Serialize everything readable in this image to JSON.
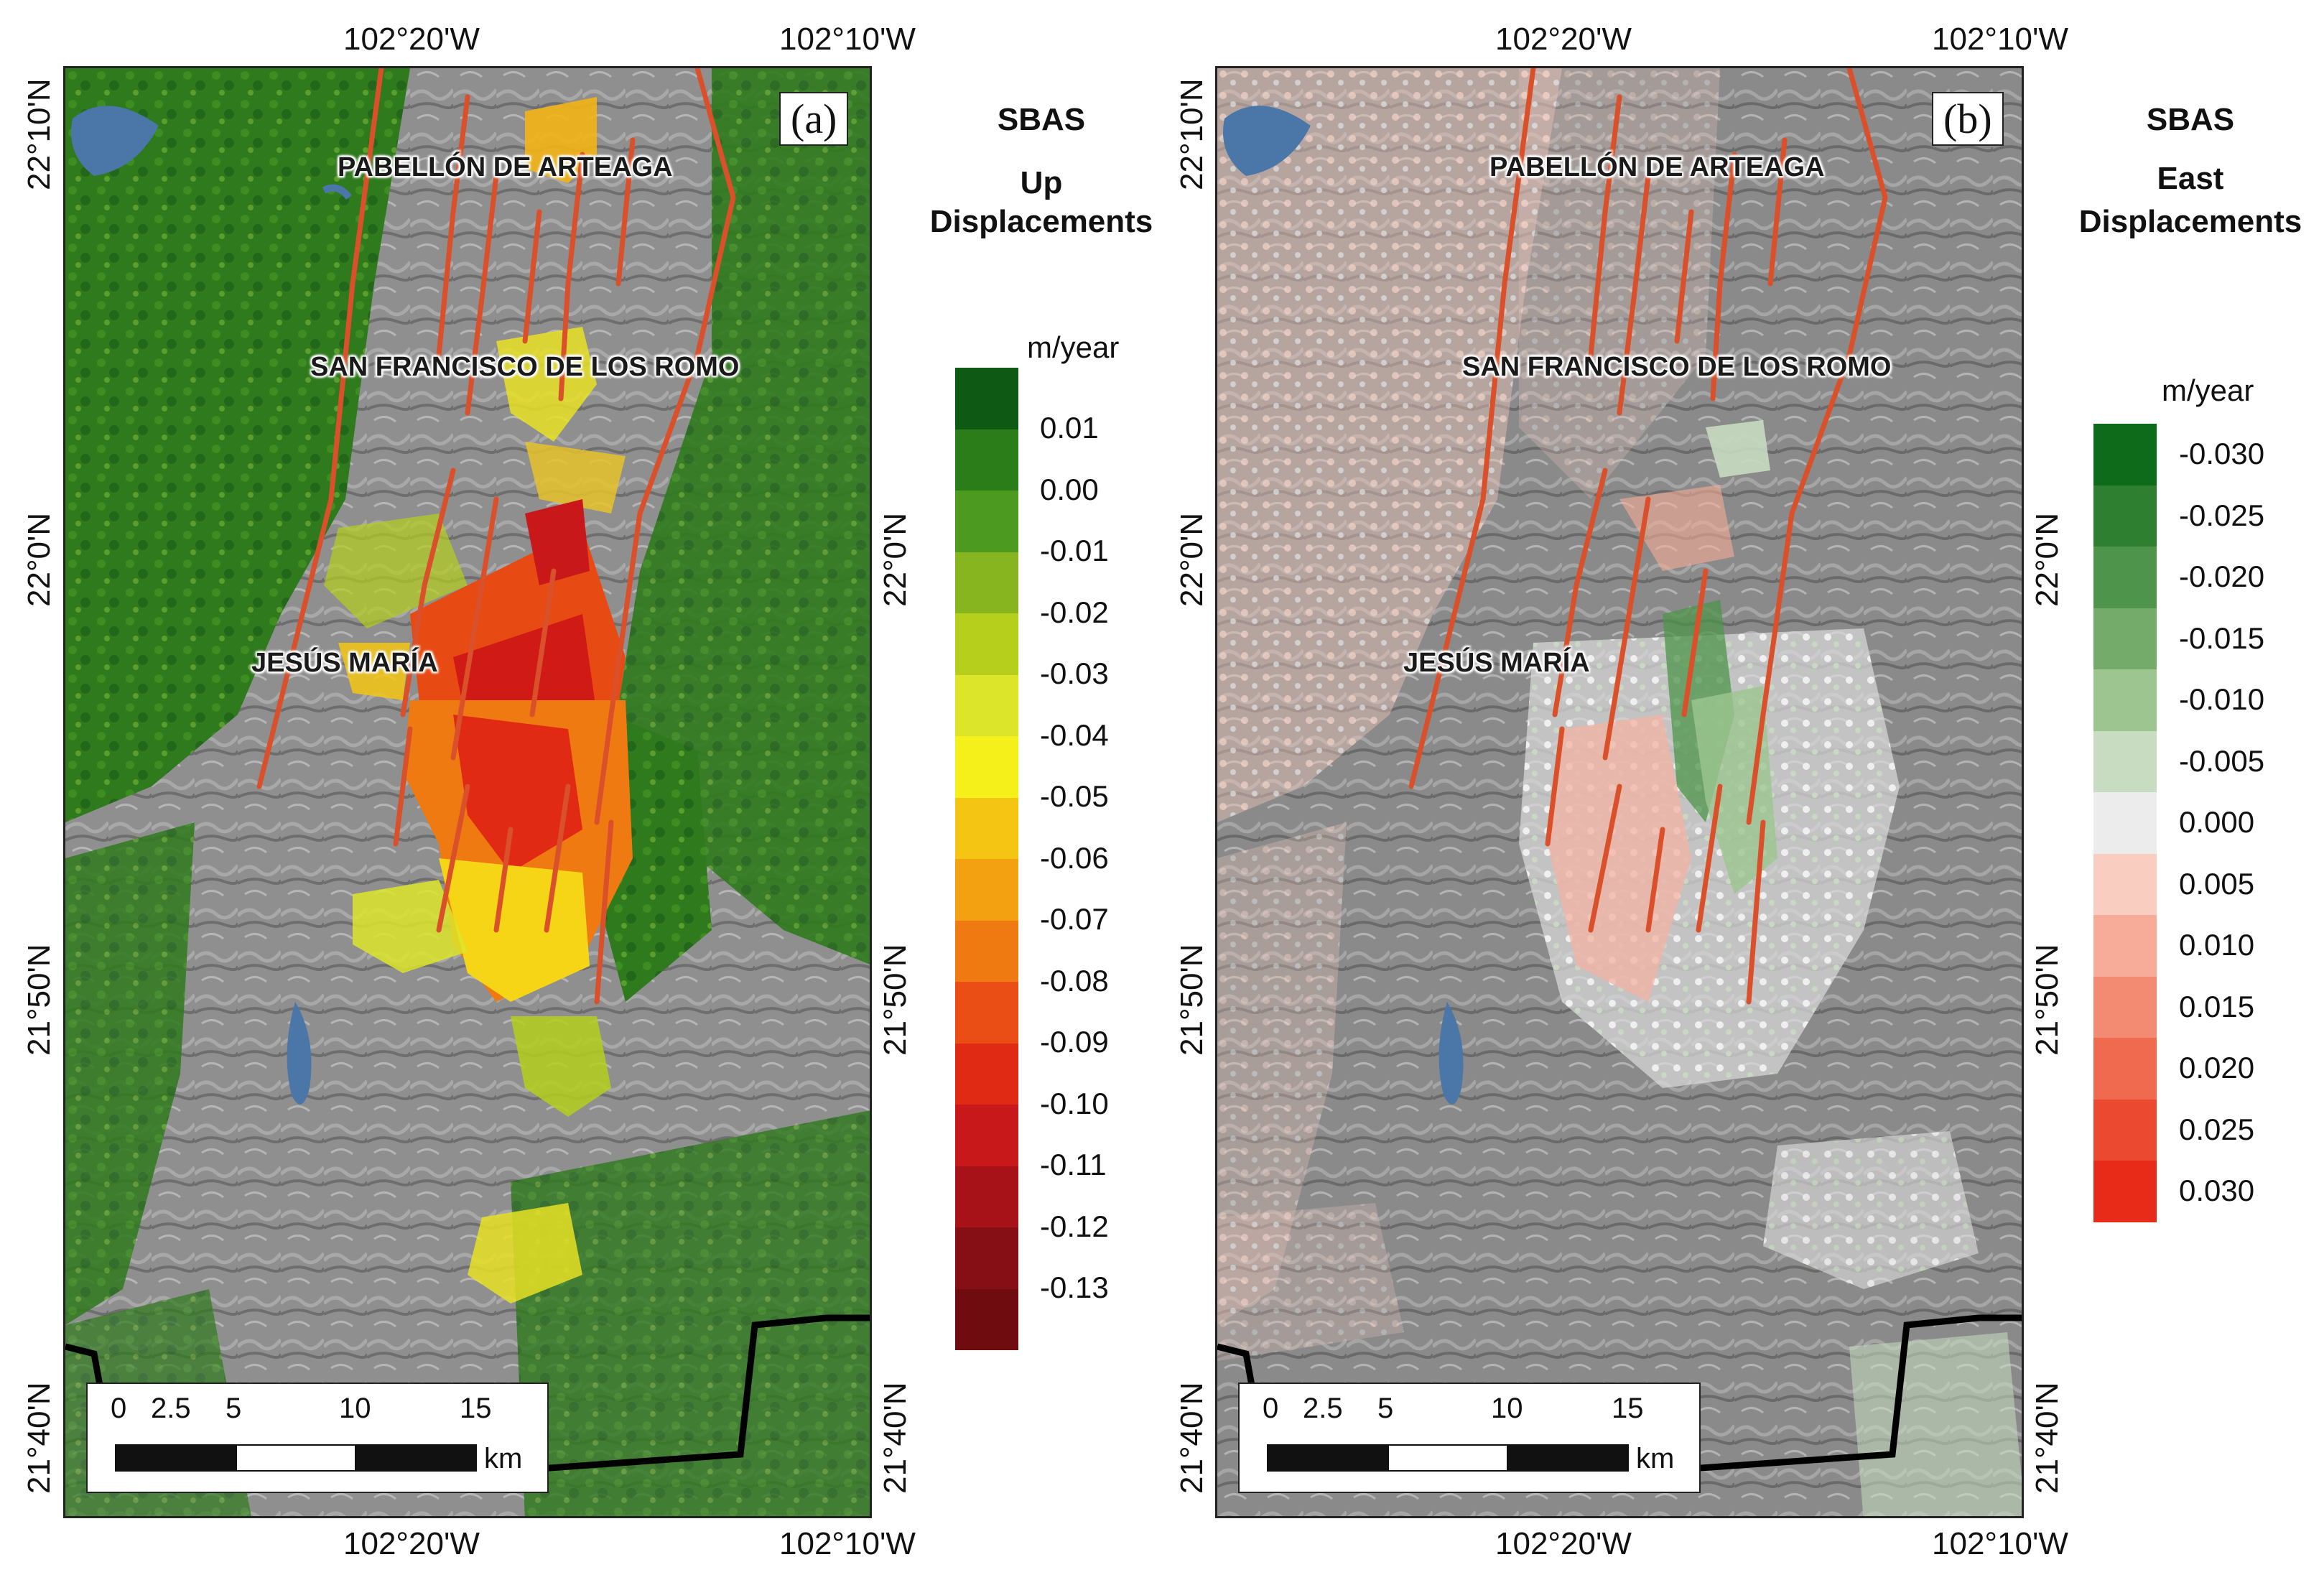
{
  "panels": [
    {
      "id": "a",
      "label": "(a)",
      "legend_title_1": "SBAS",
      "legend_title_2": "Up",
      "legend_title_3": "Displacements",
      "units": "m/year",
      "legend_ticks": [
        "0.01",
        "0.00",
        "-0.01",
        "-0.02",
        "-0.03",
        "-0.04",
        "-0.05",
        "-0.06",
        "-0.07",
        "-0.08",
        "-0.09",
        "-0.10",
        "-0.11",
        "-0.12",
        "-0.13"
      ],
      "legend_colors": [
        "#0e5a14",
        "#2b7d1a",
        "#4c9a20",
        "#86b51f",
        "#b5cf1c",
        "#dde52a",
        "#f5ef1a",
        "#f5c513",
        "#f3a111",
        "#ef7a12",
        "#ea4e14",
        "#e12a14",
        "#c8181a",
        "#a61218",
        "#850f14",
        "#6e0c10"
      ]
    },
    {
      "id": "b",
      "label": "(b)",
      "legend_title_1": "SBAS",
      "legend_title_2": "East",
      "legend_title_3": "Displacements",
      "units": "m/year",
      "legend_ticks": [
        "-0.030",
        "-0.025",
        "-0.020",
        "-0.015",
        "-0.010",
        "-0.005",
        "0.000",
        "0.005",
        "0.010",
        "0.015",
        "0.020",
        "0.025",
        "0.030"
      ],
      "legend_colors": [
        "#0d6b1a",
        "#2e7f30",
        "#4e944a",
        "#74ab6b",
        "#9cc590",
        "#c7dcc0",
        "#ececec",
        "#f9cdbf",
        "#f6ac98",
        "#f38b72",
        "#ef6a4e",
        "#ec4a30",
        "#e82a18"
      ]
    }
  ],
  "axes": {
    "top_left": "102°20'W",
    "top_right": "102°10'W",
    "bottom_left": "102°20'W",
    "bottom_right": "102°10'W",
    "lat_top": "22°10'N",
    "lat_mid": "22°0'N",
    "lat_low": "21°50'N",
    "lat_bottom": "21°40'N"
  },
  "cities": {
    "pabellon": "PABELLÓN DE ARTEAGA",
    "san_francisco": "SAN FRANCISCO DE LOS ROMO",
    "jesus_maria": "JESÚS MARÍA"
  },
  "scalebar": {
    "labels": [
      "0",
      "2.5",
      "5",
      "10",
      "15"
    ],
    "unit": "km"
  }
}
